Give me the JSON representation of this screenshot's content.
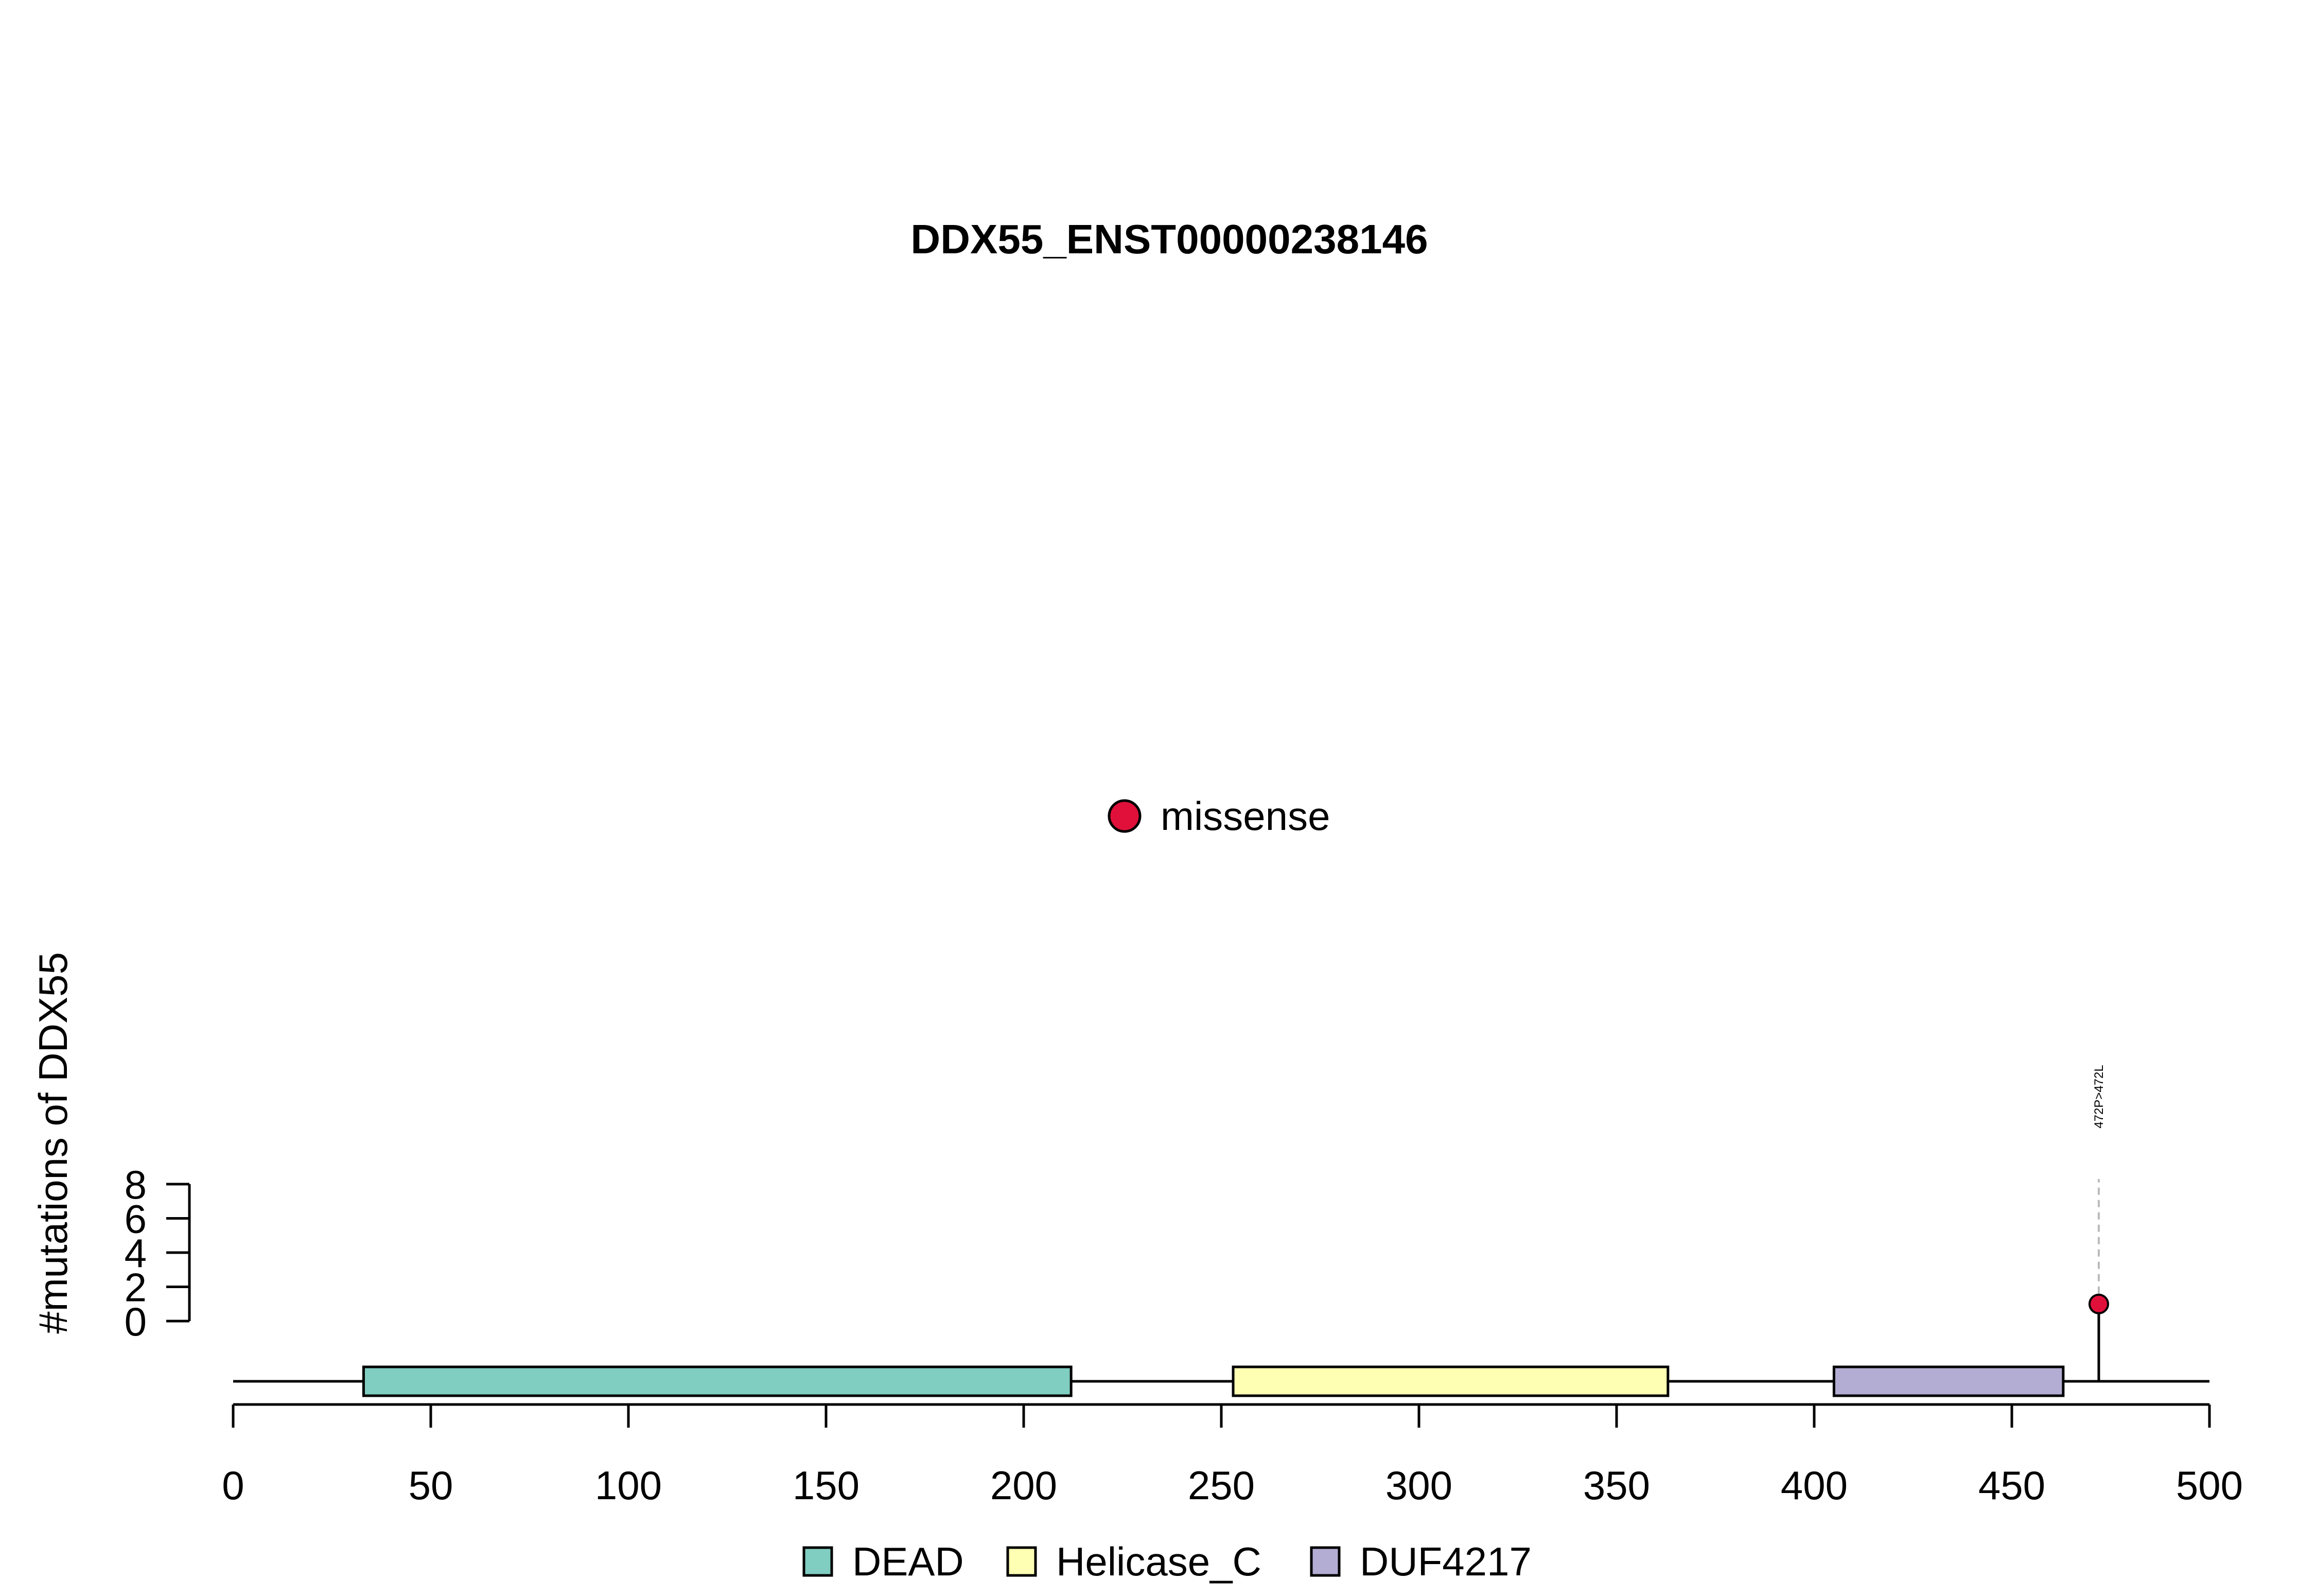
{
  "chart_data": {
    "type": "lollipop",
    "title": "DDX55_ENST00000238146",
    "ylabel": "#mutations of DDX55",
    "xlabel": "",
    "xlim": [
      0,
      500
    ],
    "x_ticks": [
      0,
      50,
      100,
      150,
      200,
      250,
      300,
      350,
      400,
      450,
      500
    ],
    "y_ticks": [
      0,
      2,
      4,
      6,
      8
    ],
    "ylim": [
      0,
      8
    ],
    "protein_length": 472,
    "domains": [
      {
        "name": "DEAD",
        "start": 33,
        "end": 212,
        "color": "#80cdc1"
      },
      {
        "name": "Helicase_C",
        "start": 253,
        "end": 363,
        "color": "#ffffb3"
      },
      {
        "name": "DUF4217",
        "start": 405,
        "end": 463,
        "color": "#b3acd3"
      }
    ],
    "mutations": [
      {
        "position": 472,
        "count": 1,
        "type": "missense",
        "label": "472P>472L"
      }
    ],
    "mutation_legend": [
      {
        "name": "missense",
        "color": "#e0103a"
      }
    ]
  }
}
